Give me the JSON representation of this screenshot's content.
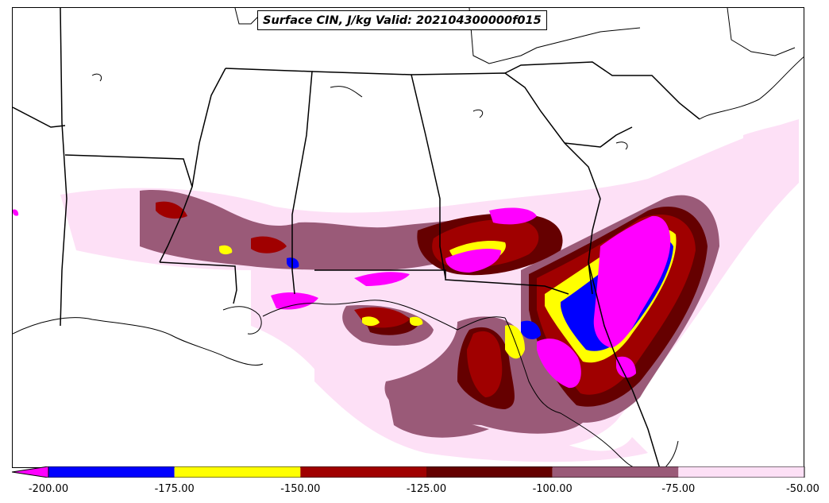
{
  "title": "Surface CIN, J/kg Valid: 202104300000f015",
  "colorbar": {
    "ticks": [
      "-200.00",
      "-175.00",
      "-150.00",
      "-125.00",
      "-100.00",
      "-75.00",
      "-50.00"
    ],
    "extend": "min",
    "bins": [
      {
        "range": [
          -200,
          -175
        ],
        "color": "#0000ff"
      },
      {
        "range": [
          -175,
          -150
        ],
        "color": "#ffff00"
      },
      {
        "range": [
          -150,
          -125
        ],
        "color": "#a00000"
      },
      {
        "range": [
          -125,
          -100
        ],
        "color": "#650000"
      },
      {
        "range": [
          -100,
          -75
        ],
        "color": "#9a5a78"
      },
      {
        "range": [
          -75,
          -50
        ],
        "color": "#fde0f6"
      }
    ],
    "below_min_color": "#ff00ff"
  },
  "map": {
    "region": "Southeastern United States and Gulf of Mexico",
    "features": [
      "coastlines",
      "state-borders"
    ]
  }
}
